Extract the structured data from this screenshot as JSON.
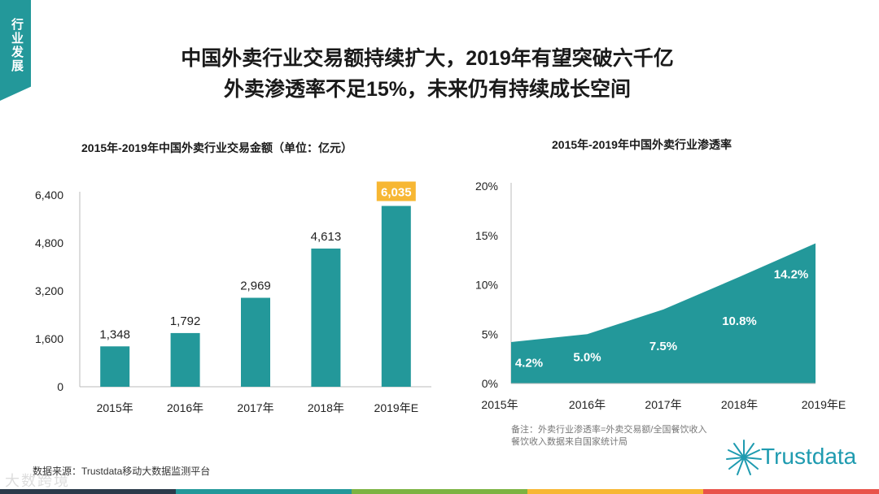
{
  "side_tag": "行业发展",
  "headline_1": "中国外卖行业交易额持续扩大，2019年有望突破六千亿",
  "headline_2": "外卖渗透率不足15%，未来仍有持续成长空间",
  "footer": {
    "note_1": "备注：外卖行业渗透率=外卖交易额/全国餐饮收入",
    "note_2": "餐饮收入数据来自国家统计局",
    "source": "数据来源：Trustdata移动大数据监测平台",
    "logo_text": "Trustdata",
    "watermark": "大数跨境"
  },
  "colors": {
    "teal": "#23989a",
    "highlight": "#f7b733"
  },
  "chart_data": [
    {
      "type": "bar",
      "title": "2015年-2019年中国外卖行业交易金额（单位：亿元）",
      "categories": [
        "2015年",
        "2016年",
        "2017年",
        "2018年",
        "2019年E"
      ],
      "values": [
        1348,
        1792,
        2969,
        4613,
        6035
      ],
      "value_labels": [
        "1,348",
        "1,792",
        "2,969",
        "4,613",
        "6,035"
      ],
      "highlight_index": 4,
      "yticks": [
        0,
        1600,
        3200,
        4800,
        6400
      ],
      "ytick_labels": [
        "0",
        "1,600",
        "3,200",
        "4,800",
        "6,400"
      ],
      "ylim": [
        0,
        6400
      ]
    },
    {
      "type": "area",
      "title": "2015年-2019年中国外卖行业渗透率",
      "categories": [
        "2015年",
        "2016年",
        "2017年",
        "2018年",
        "2019年E"
      ],
      "values": [
        4.2,
        5.0,
        7.5,
        10.8,
        14.2
      ],
      "value_labels": [
        "4.2%",
        "5.0%",
        "7.5%",
        "10.8%",
        "14.2%"
      ],
      "yticks": [
        0,
        5,
        10,
        15,
        20
      ],
      "ytick_labels": [
        "0%",
        "5%",
        "10%",
        "15%",
        "20%"
      ],
      "ylim": [
        0,
        20
      ]
    }
  ]
}
